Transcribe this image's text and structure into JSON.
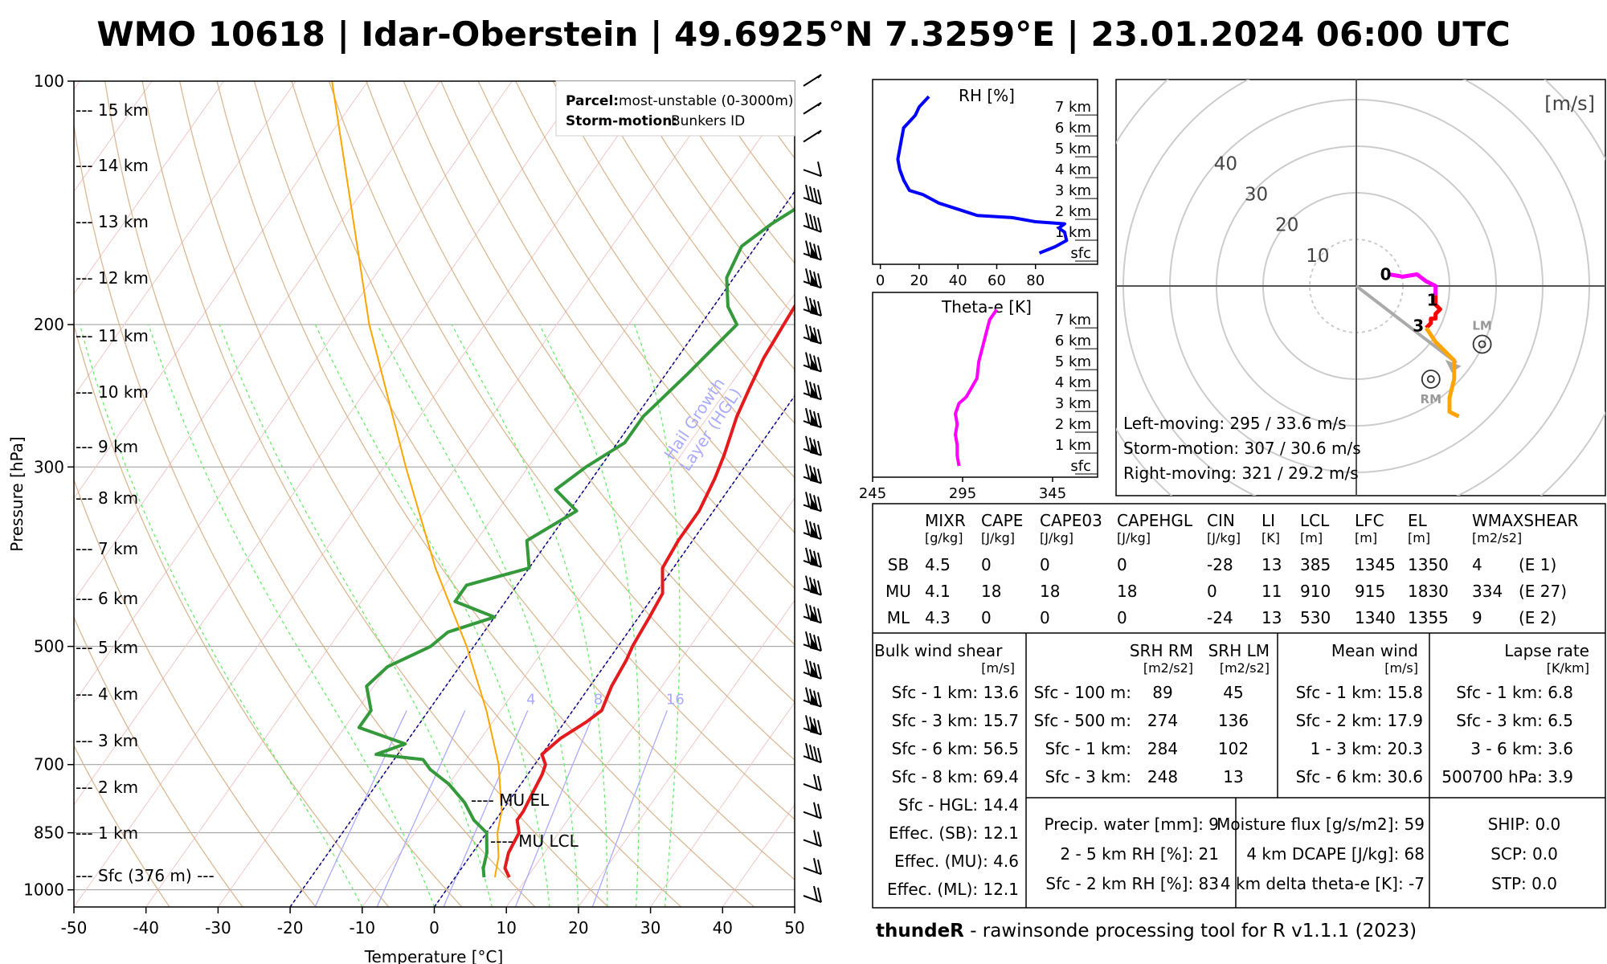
{
  "title": "WMO 10618 | Idar-Oberstein | 49.6925°N 7.3259°E | 23.01.2024 06:00 UTC",
  "skewt": {
    "xlabel": "Temperature [°C]",
    "ylabel": "Pressure [hPa]",
    "temp_ticks": [
      "-50",
      "-40",
      "-30",
      "-20",
      "-10",
      "0",
      "10",
      "20",
      "30",
      "40",
      "50"
    ],
    "pressure_ticks": [
      "100",
      "200",
      "300",
      "500",
      "700",
      "850",
      "1000"
    ],
    "height_labels": [
      "--- 15 km",
      "--- 14 km",
      "--- 13 km",
      "--- 12 km",
      "--- 11 km",
      "--- 10 km",
      "--- 9 km",
      "--- 8 km",
      "--- 7 km",
      "--- 6 km",
      "--- 5 km",
      "--- 4 km",
      "--- 3 km",
      "--- 2 km",
      "--- 1 km",
      "--- Sfc (376 m) ---"
    ],
    "parcel_label": "Parcel:",
    "parcel_value": "most-unstable (0-3000m)",
    "storm_label": "Storm-motion:",
    "storm_value": "Bunkers ID",
    "hgl_label": "Hail Growth\nLayer (HGL)",
    "mixr_labels": [
      "4",
      "8",
      "16"
    ],
    "mu_el": "---- MU EL",
    "mu_lcl": "---- MU LCL"
  },
  "chart_data": [
    {
      "type": "line",
      "title": "Skew-T log-P diagram",
      "xlabel": "Temperature [°C]",
      "ylabel": "Pressure [hPa]",
      "xlim": [
        -50,
        50
      ],
      "ylim": [
        1050,
        100
      ],
      "series": [
        {
          "name": "Temperature",
          "color": "#e41a1c",
          "points": [
            [
              965,
              7.5
            ],
            [
              940,
              6
            ],
            [
              900,
              5
            ],
            [
              850,
              4.5
            ],
            [
              820,
              3
            ],
            [
              800,
              3
            ],
            [
              760,
              2.5
            ],
            [
              720,
              2
            ],
            [
              700,
              1.5
            ],
            [
              680,
              0
            ],
            [
              650,
              1
            ],
            [
              620,
              3
            ],
            [
              600,
              4
            ],
            [
              560,
              3
            ],
            [
              520,
              2.5
            ],
            [
              500,
              2
            ],
            [
              460,
              1.5
            ],
            [
              430,
              1
            ],
            [
              400,
              -1.5
            ],
            [
              370,
              -2
            ],
            [
              340,
              -2
            ],
            [
              310,
              -3
            ],
            [
              290,
              -4
            ],
            [
              260,
              -6
            ],
            [
              240,
              -7
            ],
            [
              220,
              -8
            ],
            [
              200,
              -8.5
            ],
            [
              180,
              -9
            ],
            [
              165,
              -5
            ],
            [
              150,
              1
            ],
            [
              140,
              3
            ],
            [
              125,
              6
            ],
            [
              115,
              6
            ],
            [
              105,
              5
            ],
            [
              100,
              5
            ]
          ]
        },
        {
          "name": "Dewpoint",
          "color": "#33993a",
          "points": [
            [
              965,
              4
            ],
            [
              940,
              3
            ],
            [
              900,
              2
            ],
            [
              850,
              0
            ],
            [
              820,
              -3
            ],
            [
              780,
              -6
            ],
            [
              740,
              -10
            ],
            [
              710,
              -14
            ],
            [
              690,
              -16
            ],
            [
              680,
              -23
            ],
            [
              660,
              -20
            ],
            [
              630,
              -28
            ],
            [
              600,
              -28
            ],
            [
              560,
              -31
            ],
            [
              530,
              -30
            ],
            [
              500,
              -26
            ],
            [
              480,
              -25
            ],
            [
              460,
              -20
            ],
            [
              440,
              -27
            ],
            [
              420,
              -27
            ],
            [
              400,
              -20
            ],
            [
              370,
              -23
            ],
            [
              340,
              -19
            ],
            [
              320,
              -24
            ],
            [
              300,
              -22
            ],
            [
              280,
              -19
            ],
            [
              260,
              -19
            ],
            [
              230,
              -17
            ],
            [
              200,
              -15
            ],
            [
              190,
              -18
            ],
            [
              175,
              -21
            ],
            [
              160,
              -22
            ],
            [
              150,
              -20
            ],
            [
              140,
              -17
            ],
            [
              120,
              -14
            ],
            [
              110,
              -12
            ],
            [
              100,
              -9
            ]
          ]
        },
        {
          "name": "MU parcel",
          "color": "#ffa500",
          "points": [
            [
              965,
              5.5
            ],
            [
              910,
              4
            ],
            [
              850,
              1.5
            ],
            [
              800,
              0
            ],
            [
              700,
              -5
            ],
            [
              600,
              -12
            ],
            [
              500,
              -21
            ],
            [
              400,
              -33
            ],
            [
              300,
              -47
            ],
            [
              200,
              -66
            ],
            [
              100,
              -95
            ]
          ]
        }
      ],
      "wind_barbs_count": 30
    },
    {
      "type": "line",
      "title": "RH [%]",
      "xlim": [
        0,
        100
      ],
      "x_ticks": [
        "0",
        "20",
        "40",
        "60",
        "80"
      ],
      "height_labels": [
        "7 km",
        "6 km",
        "5 km",
        "4 km",
        "3 km",
        "2 km",
        "1 km",
        "sfc"
      ],
      "color": "#0000ff",
      "series": [
        {
          "name": "RH",
          "x": [
            82,
            90,
            96,
            95,
            92,
            95,
            80,
            68,
            50,
            40,
            30,
            22,
            15,
            12,
            10,
            9,
            10,
            11,
            12,
            14,
            18,
            20,
            22,
            25
          ],
          "y_km": [
            0,
            0.3,
            0.6,
            1,
            1.2,
            1.4,
            1.5,
            1.7,
            1.8,
            2.1,
            2.4,
            2.8,
            3,
            3.5,
            4,
            4.5,
            5,
            5.5,
            6,
            6.2,
            6.6,
            7,
            7.2,
            7.5
          ]
        }
      ]
    },
    {
      "type": "line",
      "title": "Theta-e [K]",
      "xlim": [
        245,
        370
      ],
      "x_ticks": [
        "245",
        "295",
        "345"
      ],
      "height_labels": [
        "7 km",
        "6 km",
        "5 km",
        "4 km",
        "3 km",
        "2 km",
        "1 km",
        "sfc"
      ],
      "color": "#ff00ff",
      "series": [
        {
          "name": "Theta-e",
          "x": [
            293,
            292,
            292,
            291,
            292,
            291,
            293,
            297,
            299,
            303,
            304,
            307,
            310,
            314
          ],
          "y_km": [
            0,
            0.5,
            1,
            1.5,
            2,
            2.5,
            3,
            3.3,
            3.6,
            4.2,
            5,
            6,
            7,
            7.5
          ]
        }
      ]
    },
    {
      "type": "line",
      "title": "Hodograph",
      "unit_label": "[m/s]",
      "ring_labels": [
        "10",
        "20",
        "30",
        "40"
      ],
      "height_markers": [
        "0",
        "1",
        "3"
      ],
      "series": [
        {
          "name": "0-1 km",
          "color": "#ff00ff",
          "u_v": [
            [
              7,
              2.5
            ],
            [
              10,
              2
            ],
            [
              13,
              2.5
            ],
            [
              15,
              1
            ],
            [
              17,
              0
            ],
            [
              17,
              -2
            ]
          ]
        },
        {
          "name": "1-3 km",
          "color": "#ff0000",
          "u_v": [
            [
              17,
              -2
            ],
            [
              17,
              -4
            ],
            [
              18,
              -5
            ],
            [
              17,
              -6
            ],
            [
              17,
              -7
            ],
            [
              16,
              -7
            ],
            [
              16,
              -8
            ],
            [
              15,
              -9
            ]
          ]
        },
        {
          "name": "3-9 km",
          "color": "#ffa500",
          "u_v": [
            [
              15,
              -9
            ],
            [
              17,
              -12
            ],
            [
              19,
              -14
            ],
            [
              21,
              -16
            ],
            [
              21,
              -20
            ],
            [
              20,
              -24
            ],
            [
              20,
              -27
            ],
            [
              22,
              -28
            ]
          ]
        }
      ],
      "storm_vectors": {
        "LM": [
          27,
          -12.5
        ],
        "RM": [
          16,
          -20
        ]
      },
      "mean_wind": [
        21.5,
        -16.5
      ],
      "notes": [
        "Left-moving: 295 / 33.6 m/s",
        "Storm-motion: 307 / 30.6 m/s",
        "Right-moving: 321 / 29.2 m/s"
      ]
    }
  ],
  "table": {
    "top_headers": [
      "MIXR",
      "CAPE",
      "CAPE03",
      "CAPEHGL",
      "CIN",
      "LI",
      "LCL",
      "LFC",
      "EL",
      "WMAXSHEAR"
    ],
    "top_units": [
      "[g/kg]",
      "[J/kg]",
      "[J/kg]",
      "[J/kg]",
      "[J/kg]",
      "[K]",
      "[m]",
      "[m]",
      "[m]",
      "[m2/s2]"
    ],
    "rows": [
      {
        "label": "SB",
        "values": [
          "4.5",
          "0",
          "0",
          "0",
          "-28",
          "13",
          "385",
          "1345",
          "1350",
          "4",
          "(E 1)"
        ]
      },
      {
        "label": "MU",
        "values": [
          "4.1",
          "18",
          "18",
          "18",
          "0",
          "11",
          "910",
          "915",
          "1830",
          "334",
          "(E 27)"
        ]
      },
      {
        "label": "ML",
        "values": [
          "4.3",
          "0",
          "0",
          "0",
          "-24",
          "13",
          "530",
          "1340",
          "1355",
          "9",
          "(E 2)"
        ]
      }
    ],
    "bulk": {
      "header": "Bulk wind shear",
      "unit": "[m/s]",
      "rows": [
        "Sfc - 1 km: 13.6",
        "Sfc - 3 km: 15.7",
        "Sfc - 6 km: 56.5",
        "Sfc - 8 km: 69.4",
        "Sfc - HGL: 14.4",
        "Effec. (SB): 12.1",
        "Effec. (MU): 4.6",
        "Effec. (ML): 12.1"
      ]
    },
    "srh": {
      "header_rm": "SRH RM",
      "header_lm": "SRH LM",
      "unit_rm": "[m2/s2]",
      "unit_lm": "[m2/s2]",
      "rows": [
        [
          "Sfc - 100 m:",
          "89",
          "45"
        ],
        [
          "Sfc - 500 m:",
          "274",
          "136"
        ],
        [
          "Sfc - 1 km:",
          "284",
          "102"
        ],
        [
          "Sfc - 3 km:",
          "248",
          "13"
        ]
      ]
    },
    "mean": {
      "header": "Mean wind",
      "unit": "[m/s]",
      "rows": [
        "Sfc - 1 km: 15.8",
        "Sfc - 2 km: 17.9",
        "1 - 3 km: 20.3",
        "Sfc - 6 km: 30.6"
      ]
    },
    "lapse": {
      "header": "Lapse rate",
      "unit": "[K/km]",
      "rows": [
        "Sfc - 1 km: 6.8",
        "Sfc - 3 km: 6.5",
        "3 - 6 km: 3.6",
        "500700 hPa: 3.9"
      ]
    },
    "moist": [
      "Precip. water [mm]: 9",
      "2 - 5 km RH [%]: 21",
      "Sfc - 2 km RH [%]: 83"
    ],
    "flux": [
      "Moisture flux [g/s/m2]: 59",
      "4 km DCAPE [J/kg]: 68",
      "4 km delta theta-e [K]: -7"
    ],
    "indices": [
      "SHIP: 0.0",
      "SCP: 0.0",
      "STP: 0.0"
    ]
  },
  "footer": {
    "bold": "thundeR",
    "rest": " - rawinsonde processing tool for R v1.1.1 (2023)"
  },
  "colors": {
    "temp": "#e41a1c",
    "dew": "#33993a",
    "parcel": "#ffa500",
    "rh": "#0000ff",
    "thetae": "#ff00ff",
    "dry": "#d2a679",
    "moist": "#66ee66",
    "mixr": "#aaaaff",
    "hgl": "#00008b"
  }
}
